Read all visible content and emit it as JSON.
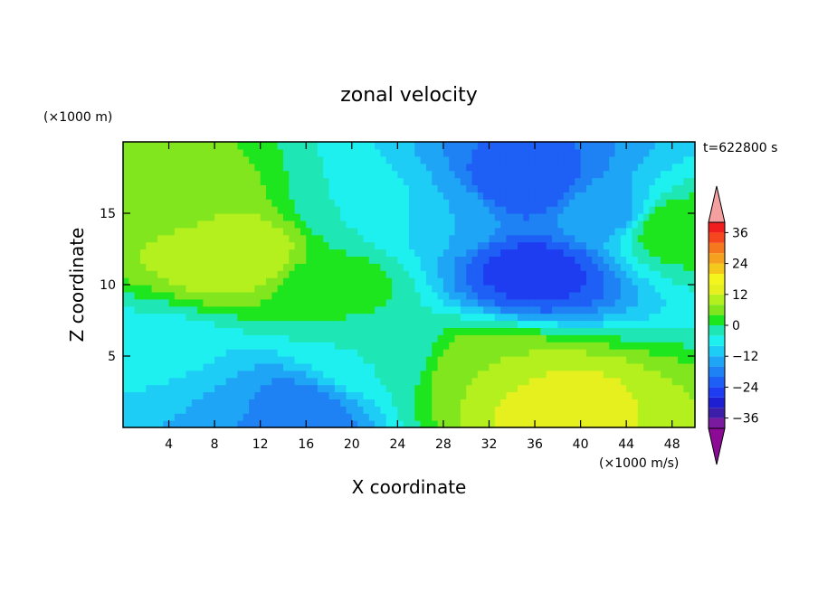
{
  "chart_data": {
    "type": "heatmap",
    "title": "zonal velocity",
    "xlabel": "X coordinate",
    "ylabel": "Z coordinate",
    "x_unit": "(×1000 m/s)",
    "y_unit": "(×1000 m)",
    "time_label": "t=622800 s",
    "xlim": [
      0,
      50
    ],
    "ylim": [
      0,
      20
    ],
    "x_ticks": [
      4,
      8,
      12,
      16,
      20,
      24,
      28,
      32,
      36,
      40,
      44,
      48
    ],
    "y_ticks": [
      5,
      10,
      15
    ],
    "colorbar": {
      "ticks": [
        36,
        24,
        12,
        0,
        -12,
        -24,
        -36
      ],
      "levels": [
        -40,
        -36,
        -32,
        -28,
        -24,
        -20,
        -16,
        -12,
        -8,
        -4,
        0,
        4,
        8,
        12,
        16,
        20,
        24,
        28,
        32,
        36,
        40
      ],
      "colors": [
        "#7a1a9e",
        "#3c1ea8",
        "#1e1ed2",
        "#1e3cf0",
        "#1e5ff5",
        "#1e82f5",
        "#1ea5f5",
        "#1ecdf5",
        "#1ef0f0",
        "#1ee6b4",
        "#1ee61e",
        "#82e61e",
        "#b4f01e",
        "#e6f01e",
        "#f5f51e",
        "#f5c81e",
        "#f5a01e",
        "#f5781e",
        "#f5461e",
        "#f01e1e"
      ],
      "under_color": "#8c0a96",
      "over_color": "#f5a0a0"
    },
    "field_samples": [
      {
        "x": 10,
        "z": 12,
        "value": 12
      },
      {
        "x": 4,
        "z": 16,
        "value": 7
      },
      {
        "x": 18,
        "z": 10,
        "value": 2
      },
      {
        "x": 22,
        "z": 15,
        "value": -4
      },
      {
        "x": 28,
        "z": 15,
        "value": -12
      },
      {
        "x": 35,
        "z": 17,
        "value": -24
      },
      {
        "x": 36,
        "z": 11,
        "value": -26
      },
      {
        "x": 42,
        "z": 15,
        "value": -14
      },
      {
        "x": 48,
        "z": 14,
        "value": 3
      },
      {
        "x": 8,
        "z": 2,
        "value": -12
      },
      {
        "x": 14,
        "z": 1,
        "value": -20
      },
      {
        "x": 37,
        "z": 2,
        "value": 14
      },
      {
        "x": 32,
        "z": 4,
        "value": 8
      },
      {
        "x": 22,
        "z": 5,
        "value": -4
      },
      {
        "x": 3,
        "z": 5,
        "value": -6
      }
    ]
  }
}
